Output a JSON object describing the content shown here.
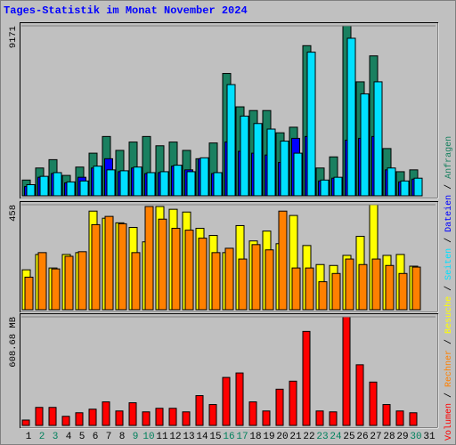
{
  "chart_data": [
    {
      "type": "bar",
      "title": "Tages-Statistik im Monat November 2024",
      "categories": [
        "1",
        "2",
        "3",
        "4",
        "5",
        "6",
        "7",
        "8",
        "9",
        "10",
        "11",
        "12",
        "13",
        "14",
        "15",
        "16",
        "17",
        "18",
        "19",
        "20",
        "21",
        "22",
        "23",
        "24",
        "25",
        "26",
        "27",
        "28",
        "29",
        "30",
        "31"
      ],
      "category_colors": [
        "#000000",
        "#00805c",
        "#00805c",
        "#000000",
        "#000000",
        "#000000",
        "#000000",
        "#000000",
        "#00805c",
        "#00805c",
        "#000000",
        "#000000",
        "#000000",
        "#000000",
        "#000000",
        "#00805c",
        "#00805c",
        "#000000",
        "#000000",
        "#000000",
        "#000000",
        "#000000",
        "#00805c",
        "#00805c",
        "#000000",
        "#000000",
        "#000000",
        "#000000",
        "#000000",
        "#00805c",
        "#000000"
      ],
      "legend_separator": " / ",
      "ylim": [
        0,
        9171
      ],
      "yticks": [
        9171
      ],
      "series": [
        {
          "name": "Anfragen",
          "color": "#1a8060",
          "values": [
            850,
            1500,
            1950,
            1100,
            1550,
            2300,
            3200,
            2450,
            2900,
            3200,
            2700,
            2900,
            2450,
            2000,
            2850,
            6600,
            4800,
            4600,
            4600,
            3400,
            3700,
            8100,
            1500,
            2100,
            9171,
            6150,
            7550,
            2550,
            1300,
            1400,
            null
          ]
        },
        {
          "name": "Dateien",
          "color": "#0000ff",
          "values": [
            500,
            1000,
            1200,
            700,
            1000,
            1500,
            2000,
            1300,
            1500,
            1200,
            1250,
            1600,
            1400,
            2000,
            1200,
            2900,
            2400,
            2300,
            2200,
            1800,
            3100,
            3200,
            800,
            950,
            3000,
            3100,
            3200,
            1400,
            750,
            900,
            null
          ]
        },
        {
          "name": "Seiten",
          "color": "#00e0ff",
          "values": [
            600,
            1050,
            1250,
            750,
            800,
            1600,
            1400,
            1350,
            1550,
            1250,
            1300,
            1650,
            1300,
            2050,
            1250,
            6000,
            4300,
            3900,
            3600,
            2950,
            2300,
            7750,
            850,
            1000,
            8500,
            5500,
            6150,
            1500,
            800,
            950,
            null
          ]
        }
      ]
    },
    {
      "type": "bar",
      "ylim": [
        0,
        458
      ],
      "yticks": [
        458
      ],
      "series": [
        {
          "name": "Besuche",
          "color": "#ffff00",
          "values": [
            174,
            241,
            182,
            241,
            249,
            430,
            399,
            379,
            359,
            296,
            450,
            438,
            426,
            355,
            324,
            249,
            367,
            300,
            343,
            288,
            411,
            280,
            197,
            193,
            237,
            320,
            458,
            237,
            241,
            190,
            null
          ]
        },
        {
          "name": "Rechner",
          "color": "#ff8000",
          "values": [
            142,
            249,
            178,
            233,
            253,
            371,
            407,
            375,
            249,
            450,
            395,
            355,
            347,
            312,
            249,
            268,
            221,
            284,
            261,
            430,
            182,
            182,
            122,
            158,
            221,
            197,
            221,
            193,
            158,
            186,
            null
          ]
        }
      ]
    },
    {
      "type": "bar",
      "ylim": [
        0,
        608.68
      ],
      "yticks": [
        {
          "value": 608.68,
          "label": "608.68 MB"
        }
      ],
      "series": [
        {
          "name": "Volumen",
          "color": "#ff0000",
          "values": [
            30,
            101,
            101,
            51,
            71,
            91,
            132,
            81,
            127,
            76,
            96,
            96,
            76,
            167,
            117,
            269,
            294,
            132,
            81,
            203,
            248,
            527,
            81,
            76,
            608.68,
            340,
            243,
            117,
            81,
            71,
            null
          ]
        }
      ]
    }
  ]
}
